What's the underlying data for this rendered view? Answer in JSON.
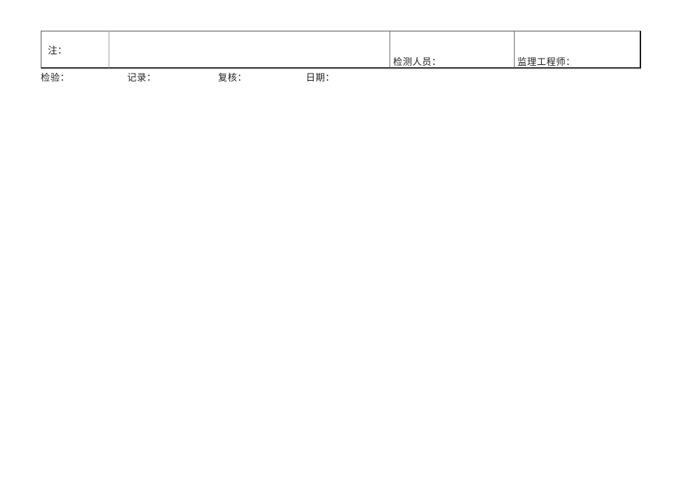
{
  "document": {
    "note_table": {
      "note_label": "注：",
      "empty_cell": "",
      "inspector_label": "检测人员：",
      "supervisor_label": "监理工程师："
    },
    "footer": {
      "items": [
        {
          "label": "检验："
        },
        {
          "label": "记录："
        },
        {
          "label": "复核："
        },
        {
          "label": "日期："
        }
      ]
    },
    "colors": {
      "page_background": "#ffffff",
      "border_dark": "#3c3c3c",
      "border_light": "#a3a3a3",
      "text": "#1c1c1c"
    }
  }
}
